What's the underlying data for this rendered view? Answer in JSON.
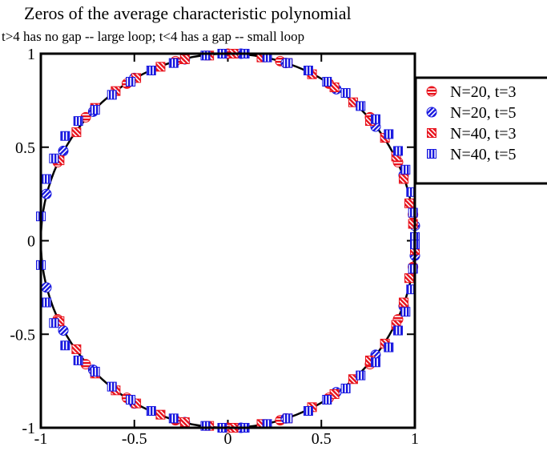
{
  "chart_data": {
    "type": "scatter",
    "title": "Zeros of the average characteristic polynomial",
    "subtitle": "t>4 has no gap -- large loop; t<4 has a gap -- small loop",
    "xlabel": "",
    "ylabel": "",
    "xlim": [
      -1,
      1
    ],
    "ylim": [
      -1,
      1
    ],
    "x_ticks": [
      "-1",
      "-0.5",
      "0",
      "0.5",
      "1"
    ],
    "y_ticks": [
      "1",
      "0.5",
      "0",
      "-0.5",
      "-1"
    ],
    "x_tick_values": [
      -1,
      -0.5,
      0,
      0.5,
      1
    ],
    "y_tick_values": [
      1,
      0.5,
      0,
      -0.5,
      -1
    ],
    "grid": false,
    "legend_position": "right",
    "reference_curve": "unit circle",
    "series": [
      {
        "name": "N=20, t=3",
        "color": "#e8121c",
        "marker": "circle",
        "points": [
          [
            0.99,
            0.14
          ],
          [
            0.91,
            0.42
          ],
          [
            0.76,
            0.66
          ],
          [
            0.54,
            0.84
          ],
          [
            0.28,
            0.96
          ],
          [
            0.0,
            1.0
          ],
          [
            -0.28,
            0.96
          ],
          [
            -0.54,
            0.84
          ],
          [
            -0.76,
            0.66
          ],
          [
            -0.91,
            0.42
          ],
          [
            -0.91,
            -0.42
          ],
          [
            -0.76,
            -0.66
          ],
          [
            -0.54,
            -0.84
          ],
          [
            -0.28,
            -0.96
          ],
          [
            0.0,
            -1.0
          ],
          [
            0.28,
            -0.96
          ],
          [
            0.54,
            -0.84
          ],
          [
            0.76,
            -0.66
          ],
          [
            0.91,
            -0.42
          ],
          [
            0.99,
            -0.14
          ]
        ]
      },
      {
        "name": "N=20, t=5",
        "color": "#1818e0",
        "marker": "circle",
        "points": [
          [
            1.0,
            0.08
          ],
          [
            0.94,
            0.35
          ],
          [
            0.79,
            0.61
          ],
          [
            0.58,
            0.81
          ],
          [
            0.31,
            0.95
          ],
          [
            0.07,
            1.0
          ],
          [
            -0.23,
            0.97
          ],
          [
            -0.5,
            0.87
          ],
          [
            -0.72,
            0.69
          ],
          [
            -0.88,
            0.48
          ],
          [
            -0.97,
            0.25
          ],
          [
            -0.97,
            -0.25
          ],
          [
            -0.88,
            -0.48
          ],
          [
            -0.72,
            -0.69
          ],
          [
            -0.5,
            -0.87
          ],
          [
            -0.23,
            -0.97
          ],
          [
            0.07,
            -1.0
          ],
          [
            0.31,
            -0.95
          ],
          [
            0.58,
            -0.81
          ],
          [
            0.79,
            -0.61
          ],
          [
            0.94,
            -0.35
          ],
          [
            1.0,
            -0.08
          ]
        ]
      },
      {
        "name": "N=40, t=3",
        "color": "#e8121c",
        "marker": "square",
        "points": [
          [
            1.0,
            -0.05
          ],
          [
            0.99,
            0.09
          ],
          [
            0.97,
            0.2
          ],
          [
            0.94,
            0.33
          ],
          [
            0.9,
            0.45
          ],
          [
            0.84,
            0.55
          ],
          [
            0.76,
            0.64
          ],
          [
            0.67,
            0.74
          ],
          [
            0.57,
            0.82
          ],
          [
            0.45,
            0.89
          ],
          [
            0.32,
            0.95
          ],
          [
            0.18,
            0.98
          ],
          [
            0.03,
            1.0
          ],
          [
            -0.1,
            0.99
          ],
          [
            -0.23,
            0.97
          ],
          [
            -0.36,
            0.93
          ],
          [
            -0.49,
            0.87
          ],
          [
            -0.6,
            0.8
          ],
          [
            -0.71,
            0.71
          ],
          [
            -0.81,
            0.58
          ],
          [
            -0.9,
            0.43
          ],
          [
            -0.9,
            -0.43
          ],
          [
            -0.81,
            -0.58
          ],
          [
            -0.71,
            -0.71
          ],
          [
            -0.6,
            -0.8
          ],
          [
            -0.49,
            -0.87
          ],
          [
            -0.36,
            -0.93
          ],
          [
            -0.23,
            -0.97
          ],
          [
            -0.1,
            -0.99
          ],
          [
            0.03,
            -1.0
          ],
          [
            0.18,
            -0.98
          ],
          [
            0.32,
            -0.95
          ],
          [
            0.45,
            -0.89
          ],
          [
            0.57,
            -0.82
          ],
          [
            0.67,
            -0.74
          ],
          [
            0.76,
            -0.64
          ],
          [
            0.84,
            -0.55
          ],
          [
            0.9,
            -0.45
          ],
          [
            0.94,
            -0.33
          ],
          [
            0.97,
            -0.2
          ]
        ]
      },
      {
        "name": "N=40, t=5",
        "color": "#1818e0",
        "marker": "square",
        "points": [
          [
            1.0,
            0.02
          ],
          [
            0.99,
            0.15
          ],
          [
            0.98,
            0.26
          ],
          [
            0.95,
            0.38
          ],
          [
            0.91,
            0.48
          ],
          [
            0.86,
            0.57
          ],
          [
            0.79,
            0.65
          ],
          [
            0.71,
            0.72
          ],
          [
            0.63,
            0.79
          ],
          [
            0.53,
            0.85
          ],
          [
            0.43,
            0.91
          ],
          [
            0.32,
            0.95
          ],
          [
            0.21,
            0.98
          ],
          [
            0.09,
            1.0
          ],
          [
            -0.03,
            1.0
          ],
          [
            -0.12,
            0.99
          ],
          [
            -0.29,
            0.95
          ],
          [
            -0.41,
            0.91
          ],
          [
            -0.52,
            0.85
          ],
          [
            -0.62,
            0.78
          ],
          [
            -0.71,
            0.7
          ],
          [
            -0.8,
            0.64
          ],
          [
            -0.87,
            0.56
          ],
          [
            -0.93,
            0.44
          ],
          [
            -0.97,
            0.33
          ],
          [
            -1.0,
            0.13
          ],
          [
            -1.0,
            -0.13
          ],
          [
            -0.97,
            -0.33
          ],
          [
            -0.93,
            -0.44
          ],
          [
            -0.87,
            -0.56
          ],
          [
            -0.8,
            -0.64
          ],
          [
            -0.71,
            -0.7
          ],
          [
            -0.62,
            -0.78
          ],
          [
            -0.52,
            -0.85
          ],
          [
            -0.41,
            -0.91
          ],
          [
            -0.29,
            -0.95
          ],
          [
            -0.12,
            -0.99
          ],
          [
            -0.03,
            -1.0
          ],
          [
            0.09,
            -1.0
          ],
          [
            0.21,
            -0.98
          ],
          [
            0.32,
            -0.95
          ],
          [
            0.43,
            -0.91
          ],
          [
            0.53,
            -0.85
          ],
          [
            0.63,
            -0.79
          ],
          [
            0.71,
            -0.72
          ],
          [
            0.79,
            -0.65
          ],
          [
            0.86,
            -0.57
          ],
          [
            0.91,
            -0.48
          ],
          [
            0.95,
            -0.38
          ],
          [
            0.98,
            -0.26
          ],
          [
            0.99,
            -0.15
          ],
          [
            1.0,
            -0.02
          ]
        ]
      }
    ]
  }
}
